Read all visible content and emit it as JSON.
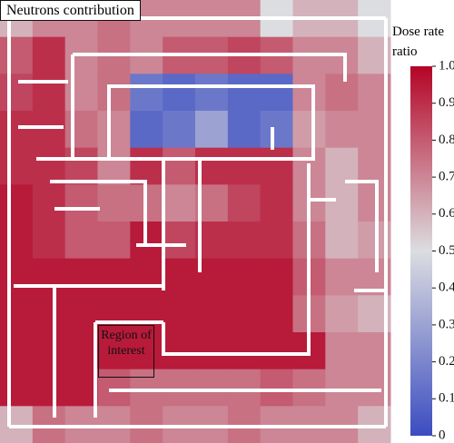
{
  "chart_data": {
    "type": "heatmap",
    "title": "Neutrons contribution",
    "colorbar_label": "Dose rate ratio",
    "annotation": "Region of interest",
    "colorscale": [
      "#3b4cc0",
      "#dcdde0",
      "#b40426"
    ],
    "zlim": [
      0,
      1
    ],
    "zticks": [
      0,
      0.1,
      0.2,
      0.3,
      0.4,
      0.5,
      0.6,
      0.7,
      0.8,
      0.9,
      {
        "value": 1,
        "label": "1.0"
      }
    ],
    "z": [
      [
        0.6,
        0.7,
        0.7,
        0.75,
        0.7,
        0.7,
        0.7,
        0.7,
        0.5,
        0.6,
        0.6,
        0.5
      ],
      [
        0.8,
        0.9,
        0.7,
        0.75,
        0.7,
        0.8,
        0.8,
        0.85,
        0.8,
        0.7,
        0.7,
        0.6
      ],
      [
        0.85,
        0.9,
        0.7,
        0.75,
        0.15,
        0.1,
        0.15,
        0.1,
        0.1,
        0.7,
        0.75,
        0.7
      ],
      [
        0.9,
        0.9,
        0.75,
        0.7,
        0.1,
        0.15,
        0.3,
        0.1,
        0.15,
        0.65,
        0.7,
        0.7
      ],
      [
        0.9,
        0.9,
        0.85,
        0.7,
        0.9,
        0.8,
        0.9,
        0.9,
        0.9,
        0.7,
        0.6,
        0.7
      ],
      [
        0.95,
        0.9,
        0.8,
        0.75,
        0.75,
        0.7,
        0.75,
        0.85,
        0.9,
        0.7,
        0.6,
        0.7
      ],
      [
        0.95,
        0.9,
        0.8,
        0.8,
        0.95,
        0.85,
        0.9,
        0.9,
        0.9,
        0.75,
        0.6,
        0.65
      ],
      [
        0.95,
        0.95,
        0.95,
        0.95,
        0.95,
        0.95,
        0.95,
        0.95,
        0.95,
        0.8,
        0.7,
        0.7
      ],
      [
        0.95,
        0.95,
        0.95,
        0.95,
        0.95,
        0.95,
        0.95,
        0.95,
        0.95,
        0.75,
        0.65,
        0.6
      ],
      [
        0.95,
        0.95,
        0.95,
        0.95,
        0.95,
        0.95,
        0.95,
        0.95,
        0.95,
        0.95,
        0.7,
        0.7
      ],
      [
        0.95,
        0.95,
        0.95,
        0.8,
        0.75,
        0.75,
        0.75,
        0.75,
        0.8,
        0.75,
        0.7,
        0.7
      ],
      [
        0.6,
        0.75,
        0.7,
        0.7,
        0.75,
        0.7,
        0.7,
        0.75,
        0.7,
        0.7,
        0.7,
        0.6
      ]
    ]
  }
}
